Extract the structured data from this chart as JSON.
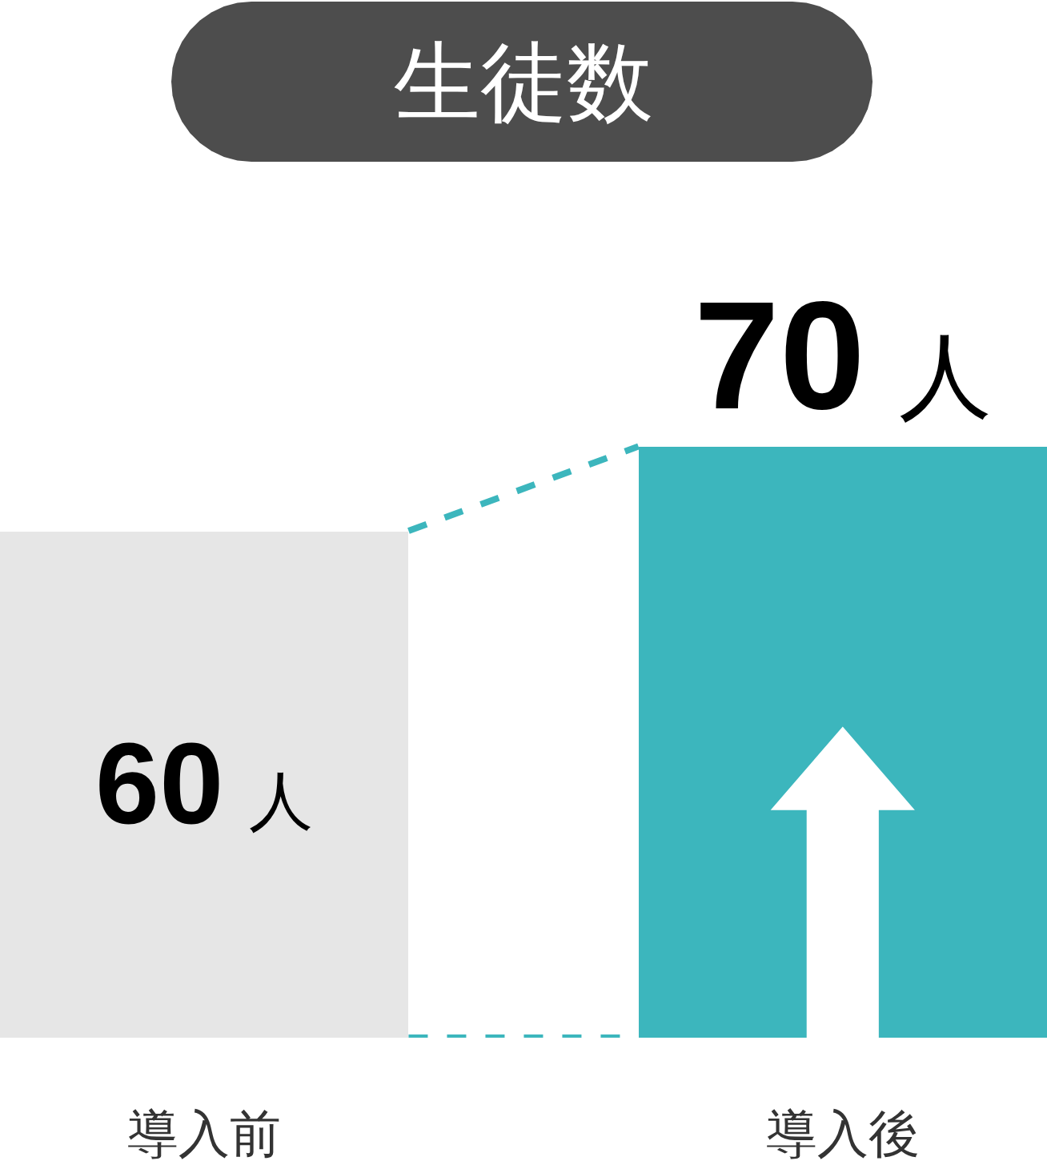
{
  "chart_data": {
    "type": "bar",
    "title": "生徒数",
    "categories": [
      "導入前",
      "導入後"
    ],
    "values": [
      60,
      70
    ],
    "colors": [
      "#e6e6e6",
      "#3cb6bd"
    ],
    "value_labels": [
      "60 人",
      "70 人"
    ]
  }
}
